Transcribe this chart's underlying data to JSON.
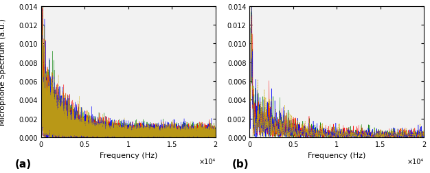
{
  "xlim": [
    0,
    20000
  ],
  "ylim_a": [
    0,
    0.014
  ],
  "ylim_b": [
    0,
    0.014
  ],
  "yticks": [
    0,
    0.002,
    0.004,
    0.006,
    0.008,
    0.01,
    0.012,
    0.014
  ],
  "xticks": [
    0,
    5000,
    10000,
    15000,
    20000
  ],
  "xticklabels": [
    "0",
    "0.5",
    "1",
    "1.5",
    "2"
  ],
  "xlabel": "Frequency (Hz)",
  "ylabel": "Microphone Spectrum (a.u.)",
  "label_a": "(a)",
  "label_b": "(b)",
  "x10_label": "×10⁴",
  "colors": [
    "blue",
    "red",
    "green",
    "#ccaa00"
  ],
  "n_points_a": 10000,
  "n_points_b": 1000,
  "seed": 42,
  "peak_freq": 200,
  "peak_amplitude": 0.014,
  "noise_base_a": 0.00065,
  "noise_base_b": 0.00045,
  "tick_fontsize": 7,
  "label_fontsize": 8,
  "axis_label_fontsize": 8,
  "bg_color": "#f2f2f2"
}
